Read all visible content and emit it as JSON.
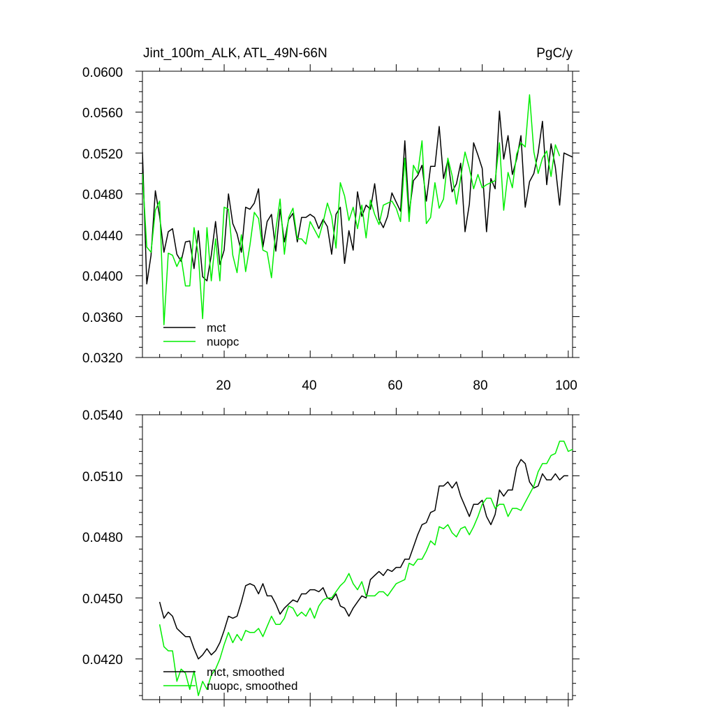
{
  "chart_data": [
    {
      "type": "line",
      "title": "Jint_100m_ALK, ATL_49N-66N",
      "units": "PgC/y",
      "xlim": [
        1,
        101
      ],
      "ylim": [
        0.032,
        0.06
      ],
      "x_ticks": [
        20,
        40,
        60,
        80,
        100
      ],
      "x_tick_labels": [
        "20",
        "40",
        "60",
        "80",
        "100"
      ],
      "y_ticks": [
        0.032,
        0.036,
        0.04,
        0.044,
        0.048,
        0.052,
        0.056,
        0.06
      ],
      "y_tick_labels": [
        "0.0320",
        "0.0360",
        "0.0400",
        "0.0440",
        "0.0480",
        "0.0520",
        "0.0560",
        "0.0600"
      ],
      "legend_position": "bottom-left",
      "x_start": 1,
      "series": [
        {
          "name": "mct",
          "color": "#000000",
          "values": [
            0.0521,
            0.0392,
            0.042,
            0.0483,
            0.0458,
            0.0423,
            0.0443,
            0.0446,
            0.0421,
            0.0414,
            0.0433,
            0.0434,
            0.0407,
            0.0444,
            0.0399,
            0.0395,
            0.042,
            0.0453,
            0.0411,
            0.0425,
            0.048,
            0.0451,
            0.0441,
            0.0423,
            0.0467,
            0.0465,
            0.0471,
            0.0485,
            0.0428,
            0.0453,
            0.046,
            0.0424,
            0.0465,
            0.0433,
            0.0455,
            0.0461,
            0.0433,
            0.0457,
            0.0457,
            0.046,
            0.0457,
            0.0446,
            0.0455,
            0.0448,
            0.0421,
            0.046,
            0.0467,
            0.0412,
            0.0444,
            0.0425,
            0.0482,
            0.0458,
            0.0469,
            0.0465,
            0.049,
            0.0455,
            0.0447,
            0.0458,
            0.0481,
            0.0472,
            0.0463,
            0.0532,
            0.0461,
            0.0493,
            0.0498,
            0.0508,
            0.0473,
            0.0507,
            0.0507,
            0.0546,
            0.0495,
            0.0513,
            0.0482,
            0.049,
            0.051,
            0.0443,
            0.047,
            0.053,
            0.0518,
            0.0505,
            0.0443,
            0.0495,
            0.0485,
            0.0561,
            0.0514,
            0.0537,
            0.0499,
            0.0514,
            0.0537,
            0.0467,
            0.0492,
            0.05,
            0.052,
            0.0551,
            0.0489,
            0.0529,
            0.0506,
            0.0469,
            0.052,
            0.0518,
            0.0516
          ]
        },
        {
          "name": "nuopc",
          "color": "#00ee00",
          "values": [
            0.05,
            0.0428,
            0.0423,
            0.0464,
            0.0473,
            0.0352,
            0.0422,
            0.042,
            0.0409,
            0.0418,
            0.039,
            0.039,
            0.0447,
            0.042,
            0.0358,
            0.0447,
            0.0395,
            0.0436,
            0.0395,
            0.0467,
            0.0465,
            0.042,
            0.0403,
            0.044,
            0.0404,
            0.043,
            0.0462,
            0.0456,
            0.0425,
            0.0423,
            0.0398,
            0.0445,
            0.0475,
            0.0421,
            0.0457,
            0.0466,
            0.0436,
            0.0436,
            0.0431,
            0.0453,
            0.0445,
            0.0437,
            0.0452,
            0.0471,
            0.0458,
            0.0427,
            0.0491,
            0.0478,
            0.0454,
            0.0467,
            0.0446,
            0.0469,
            0.0437,
            0.0474,
            0.046,
            0.045,
            0.0469,
            0.0471,
            0.0473,
            0.0466,
            0.0453,
            0.0515,
            0.0453,
            0.0508,
            0.05,
            0.0532,
            0.0451,
            0.0457,
            0.0491,
            0.0466,
            0.0475,
            0.0515,
            0.0498,
            0.047,
            0.0496,
            0.0521,
            0.0505,
            0.0485,
            0.0499,
            0.0486,
            0.0489,
            0.0491,
            0.0493,
            0.053,
            0.0464,
            0.0501,
            0.0486,
            0.0519,
            0.053,
            0.0526,
            0.0577,
            0.0521,
            0.05,
            0.0515,
            0.0522,
            0.0497,
            0.0528,
            0.0517
          ]
        }
      ]
    },
    {
      "type": "line",
      "title": "",
      "xlim": [
        1,
        101
      ],
      "ylim": [
        0.04,
        0.054
      ],
      "x_ticks": [
        20,
        40,
        60,
        80,
        100
      ],
      "y_ticks": [
        0.042,
        0.045,
        0.048,
        0.051,
        0.054
      ],
      "y_tick_labels": [
        "0.0420",
        "0.0450",
        "0.0480",
        "0.0510",
        "0.0540"
      ],
      "legend_position": "bottom-left",
      "x_start": 5,
      "series": [
        {
          "name": "mct, smoothed",
          "color": "#000000",
          "values": [
            0.0448,
            0.044,
            0.0443,
            0.0441,
            0.0435,
            0.0433,
            0.0431,
            0.0431,
            0.0425,
            0.042,
            0.0422,
            0.0425,
            0.0422,
            0.0424,
            0.0428,
            0.0434,
            0.0441,
            0.044,
            0.0441,
            0.0448,
            0.0456,
            0.0457,
            0.0456,
            0.0452,
            0.0457,
            0.0451,
            0.0451,
            0.0447,
            0.0442,
            0.0445,
            0.0447,
            0.0449,
            0.0448,
            0.0452,
            0.0452,
            0.0454,
            0.0454,
            0.0453,
            0.0455,
            0.045,
            0.0449,
            0.0452,
            0.0446,
            0.0445,
            0.0441,
            0.0445,
            0.0448,
            0.0451,
            0.045,
            0.0459,
            0.0461,
            0.0463,
            0.0461,
            0.0464,
            0.0463,
            0.0465,
            0.0465,
            0.0469,
            0.0469,
            0.0475,
            0.0481,
            0.0486,
            0.0487,
            0.0492,
            0.0493,
            0.0505,
            0.0505,
            0.0507,
            0.0504,
            0.0507,
            0.05,
            0.0495,
            0.049,
            0.0496,
            0.0496,
            0.0498,
            0.049,
            0.0486,
            0.0491,
            0.0503,
            0.05,
            0.0503,
            0.0503,
            0.0514,
            0.0518,
            0.0516,
            0.0507,
            0.0504,
            0.0505,
            0.0511,
            0.0508,
            0.0508,
            0.0511,
            0.0508,
            0.051,
            0.051
          ]
        },
        {
          "name": "nuopc, smoothed",
          "color": "#00ee00",
          "values": [
            0.0437,
            0.0426,
            0.0424,
            0.0424,
            0.0409,
            0.0415,
            0.0413,
            0.0405,
            0.0414,
            0.0402,
            0.0409,
            0.0405,
            0.0412,
            0.0415,
            0.042,
            0.0427,
            0.0433,
            0.0428,
            0.0432,
            0.0429,
            0.0434,
            0.0433,
            0.0433,
            0.0435,
            0.0431,
            0.0436,
            0.0441,
            0.0437,
            0.0437,
            0.044,
            0.0446,
            0.0445,
            0.0441,
            0.0443,
            0.0441,
            0.0445,
            0.044,
            0.0446,
            0.0449,
            0.045,
            0.045,
            0.0453,
            0.0456,
            0.0458,
            0.0462,
            0.0457,
            0.0454,
            0.0458,
            0.0451,
            0.0451,
            0.0451,
            0.0453,
            0.0453,
            0.0451,
            0.0454,
            0.0457,
            0.0458,
            0.0459,
            0.0467,
            0.0466,
            0.0469,
            0.0469,
            0.0473,
            0.0478,
            0.0476,
            0.0485,
            0.0484,
            0.0486,
            0.0482,
            0.048,
            0.0484,
            0.0485,
            0.0481,
            0.0485,
            0.049,
            0.0496,
            0.0499,
            0.0499,
            0.0494,
            0.0496,
            0.0496,
            0.049,
            0.0494,
            0.0494,
            0.0493,
            0.0497,
            0.0501,
            0.0505,
            0.0512,
            0.0516,
            0.0516,
            0.052,
            0.0521,
            0.0527,
            0.0527,
            0.0522,
            0.0523,
            0.0516
          ]
        }
      ]
    }
  ]
}
